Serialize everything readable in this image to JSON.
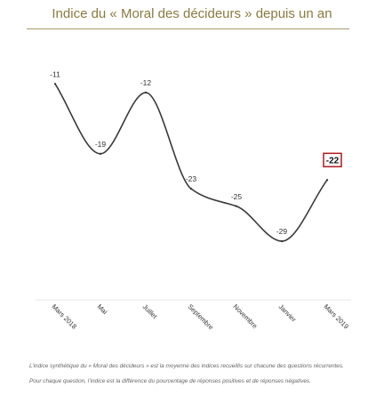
{
  "title": "Indice du « Moral des décideurs » depuis un an",
  "chart_data": {
    "type": "line",
    "categories": [
      "Mars 2018",
      "Mai",
      "Juillet",
      "Septembre",
      "Novembre",
      "Janvier",
      "Mars 2019"
    ],
    "values": [
      -11,
      -19,
      -12,
      -23,
      -25,
      -29,
      -22
    ],
    "data_labels": [
      "-11",
      "-19",
      "-12",
      "-23",
      "-25",
      "-29",
      "-22"
    ],
    "highlighted_index": 6,
    "ylim": [
      -35,
      -7
    ],
    "grid": false,
    "line_color": "#3a3a3a",
    "highlight_color": "#b01a1a"
  },
  "footnotes": [
    "L’indice synthétique du « Moral des décideurs » est la moyenne des indices recueillis sur chacune des questions récurrentes.",
    "Pour chaque question, l’indice est la différence du pourcentage de réponses positives et de réponses négatives."
  ]
}
